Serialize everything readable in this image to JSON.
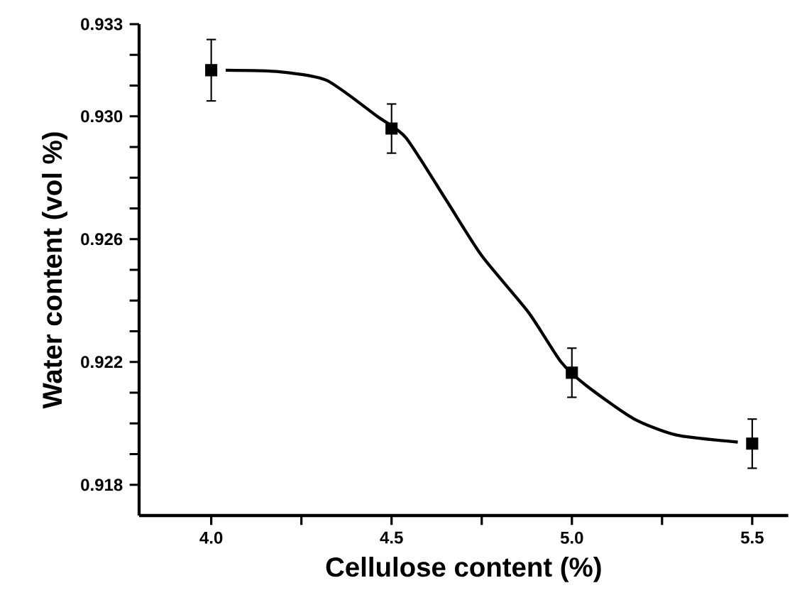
{
  "chart_data": {
    "type": "scatter",
    "xlabel": "Cellulose content (%)",
    "ylabel": "Water content (vol %)",
    "xlim": [
      3.8,
      5.6
    ],
    "ylim": [
      0.917,
      0.933
    ],
    "xticks": [
      {
        "value": 4.0,
        "label": "4.0"
      },
      {
        "value": 4.25,
        "label": null
      },
      {
        "value": 4.5,
        "label": "4.5"
      },
      {
        "value": 4.75,
        "label": null
      },
      {
        "value": 5.0,
        "label": "5.0"
      },
      {
        "value": 5.25,
        "label": null
      },
      {
        "value": 5.5,
        "label": "5.5"
      }
    ],
    "yticks": [
      {
        "value": 0.918,
        "label": "0.918"
      },
      {
        "value": 0.919,
        "label": null
      },
      {
        "value": 0.92,
        "label": null
      },
      {
        "value": 0.921,
        "label": null
      },
      {
        "value": 0.922,
        "label": "0.922"
      },
      {
        "value": 0.923,
        "label": null
      },
      {
        "value": 0.924,
        "label": null
      },
      {
        "value": 0.925,
        "label": null
      },
      {
        "value": 0.926,
        "label": "0.926"
      },
      {
        "value": 0.927,
        "label": null
      },
      {
        "value": 0.928,
        "label": null
      },
      {
        "value": 0.929,
        "label": null
      },
      {
        "value": 0.93,
        "label": "0.930"
      },
      {
        "value": 0.931,
        "label": null
      },
      {
        "value": 0.932,
        "label": null
      },
      {
        "value": 0.933,
        "label": "0.933"
      }
    ],
    "grid": false,
    "series": [
      {
        "type": "line",
        "color": "#000000",
        "line_style": "solid",
        "marker": "none",
        "x": [
          4.04,
          4.19,
          4.32,
          4.46,
          4.54,
          4.65,
          4.75,
          4.88,
          4.97,
          5.04,
          5.17,
          5.29,
          5.46
        ],
        "values": [
          0.9315,
          0.93145,
          0.93117,
          0.93,
          0.9293,
          0.9273,
          0.92546,
          0.92361,
          0.922,
          0.92123,
          0.92016,
          0.91962,
          0.91939
        ]
      },
      {
        "color": "#000000",
        "marker": "square",
        "x": [
          4.0,
          4.5,
          5.0,
          5.5
        ],
        "values": [
          0.9315,
          0.9296,
          0.92165,
          0.91934
        ],
        "errors": [
          0.001,
          0.0008,
          0.0008,
          0.0008
        ]
      }
    ]
  }
}
